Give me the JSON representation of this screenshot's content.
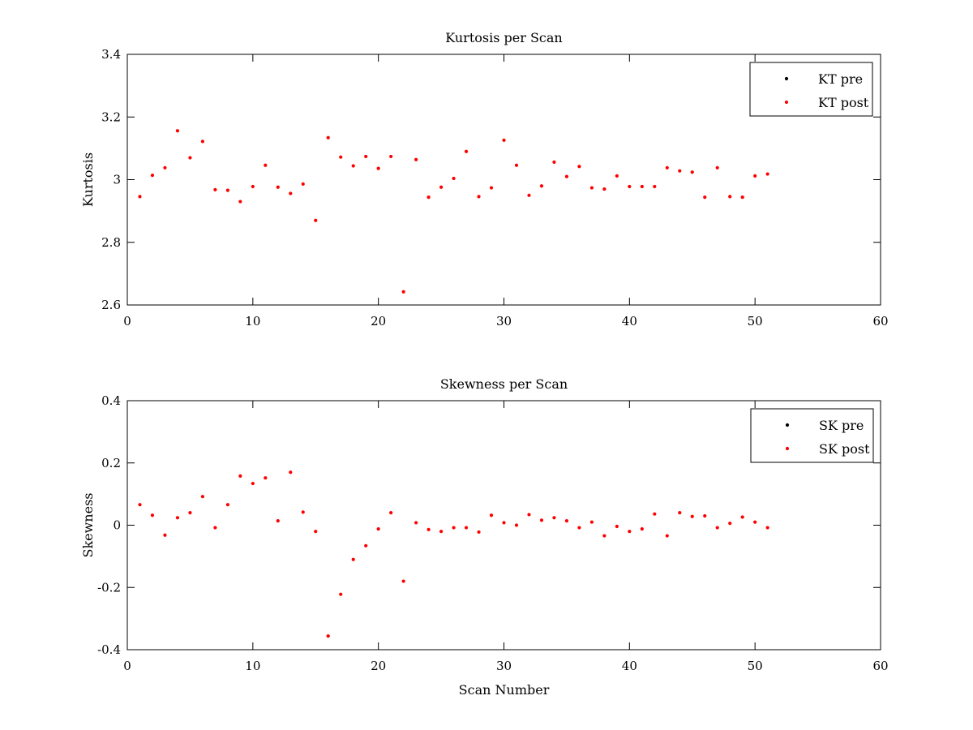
{
  "chart_data": [
    {
      "type": "scatter",
      "title": "Kurtosis per Scan",
      "xlabel": "",
      "ylabel": "Kurtosis",
      "xlim": [
        0,
        60
      ],
      "ylim": [
        2.6,
        3.4
      ],
      "xticks": [
        0,
        10,
        20,
        30,
        40,
        50,
        60
      ],
      "yticks": [
        2.6,
        2.8,
        3.0,
        3.2,
        3.4
      ],
      "xtick_labels": [
        "0",
        "10",
        "20",
        "30",
        "40",
        "50",
        "60"
      ],
      "ytick_labels": [
        "2.6",
        "2.8",
        "3",
        "3.2",
        "3.4"
      ],
      "grid": false,
      "legend_position": "top-right",
      "series": [
        {
          "name": "KT pre",
          "color": "#000000",
          "x": [],
          "y": []
        },
        {
          "name": "KT post",
          "color": "#ff0000",
          "x": [
            1,
            2,
            3,
            4,
            5,
            6,
            7,
            8,
            9,
            10,
            11,
            12,
            13,
            14,
            15,
            16,
            17,
            18,
            19,
            20,
            21,
            22,
            23,
            24,
            25,
            26,
            27,
            28,
            29,
            30,
            31,
            32,
            33,
            34,
            35,
            36,
            37,
            38,
            39,
            40,
            41,
            42,
            43,
            44,
            45,
            46,
            47,
            48,
            49,
            50,
            51
          ],
          "y": [
            2.946,
            3.014,
            3.038,
            3.156,
            3.07,
            3.122,
            2.968,
            2.966,
            2.93,
            2.978,
            3.046,
            2.976,
            2.956,
            2.986,
            2.87,
            3.134,
            3.072,
            3.044,
            3.074,
            3.036,
            3.074,
            2.642,
            3.064,
            2.944,
            2.976,
            3.004,
            3.09,
            2.946,
            2.974,
            3.126,
            3.046,
            2.95,
            2.98,
            3.056,
            3.01,
            3.042,
            2.974,
            2.97,
            3.012,
            2.978,
            2.978,
            2.978,
            3.038,
            3.028,
            3.024,
            2.944,
            3.038,
            2.946,
            2.944,
            3.012,
            3.018
          ]
        }
      ]
    },
    {
      "type": "scatter",
      "title": "Skewness per Scan",
      "xlabel": "Scan Number",
      "ylabel": "Skewness",
      "xlim": [
        0,
        60
      ],
      "ylim": [
        -0.4,
        0.4
      ],
      "xticks": [
        0,
        10,
        20,
        30,
        40,
        50,
        60
      ],
      "yticks": [
        -0.4,
        -0.2,
        0,
        0.2,
        0.4
      ],
      "xtick_labels": [
        "0",
        "10",
        "20",
        "30",
        "40",
        "50",
        "60"
      ],
      "ytick_labels": [
        "-0.4",
        "-0.2",
        "0",
        "0.2",
        "0.4"
      ],
      "grid": false,
      "legend_position": "top-right",
      "series": [
        {
          "name": "SK pre",
          "color": "#000000",
          "x": [],
          "y": []
        },
        {
          "name": "SK post",
          "color": "#ff0000",
          "x": [
            1,
            2,
            3,
            4,
            5,
            6,
            7,
            8,
            9,
            10,
            11,
            12,
            13,
            14,
            15,
            16,
            17,
            18,
            19,
            20,
            21,
            22,
            23,
            24,
            25,
            26,
            27,
            28,
            29,
            30,
            31,
            32,
            33,
            34,
            35,
            36,
            37,
            38,
            39,
            40,
            41,
            42,
            43,
            44,
            45,
            46,
            47,
            48,
            49,
            50,
            51
          ],
          "y": [
            0.066,
            0.032,
            -0.032,
            0.024,
            0.04,
            0.092,
            -0.008,
            0.066,
            0.158,
            0.134,
            0.152,
            0.014,
            0.17,
            0.042,
            -0.02,
            -0.356,
            -0.222,
            -0.11,
            -0.066,
            -0.012,
            0.04,
            -0.18,
            0.008,
            -0.014,
            -0.02,
            -0.008,
            -0.008,
            -0.022,
            0.032,
            0.008,
            0.0,
            0.034,
            0.016,
            0.024,
            0.014,
            -0.008,
            0.01,
            -0.034,
            -0.004,
            -0.02,
            -0.012,
            0.036,
            -0.034,
            0.04,
            0.028,
            0.03,
            -0.008,
            0.006,
            0.026,
            0.01,
            -0.008
          ]
        }
      ]
    }
  ]
}
